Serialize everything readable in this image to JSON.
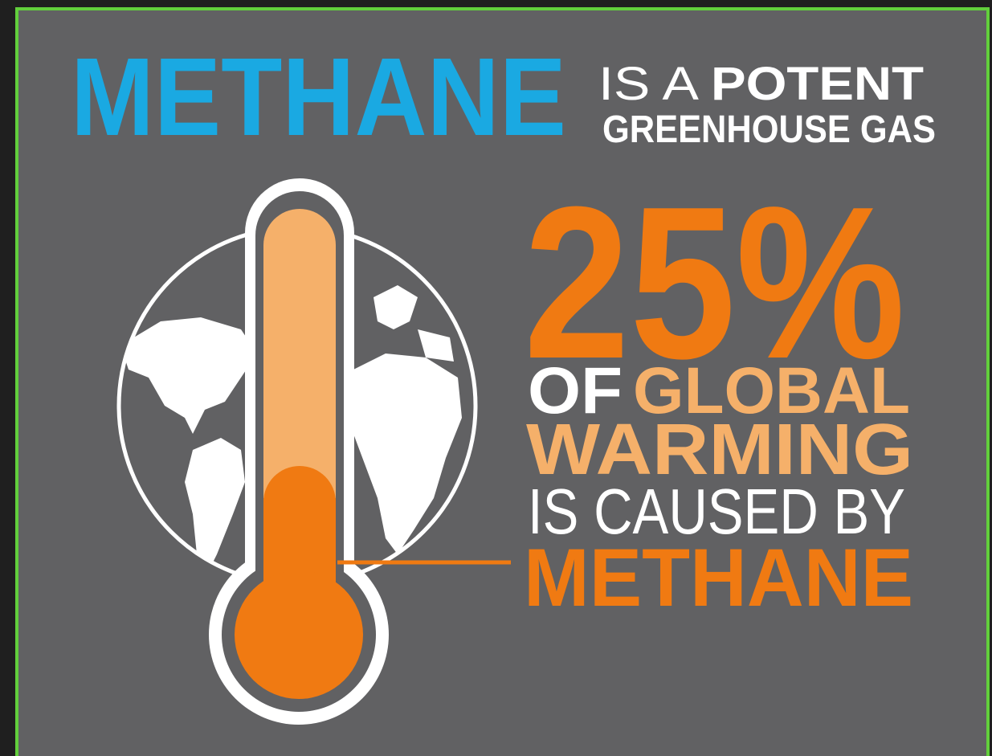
{
  "header": {
    "title": "METHANE",
    "subtitle_prefix": "IS A",
    "subtitle_emphasis": "POTENT",
    "subtitle_line2": "GREENHOUSE GAS"
  },
  "statistic": {
    "value": "25%",
    "line1_prefix": "OF",
    "line1_emphasis": "GLOBAL",
    "line2": "WARMING",
    "line3": "IS CAUSED BY",
    "line4": "METHANE"
  }
}
